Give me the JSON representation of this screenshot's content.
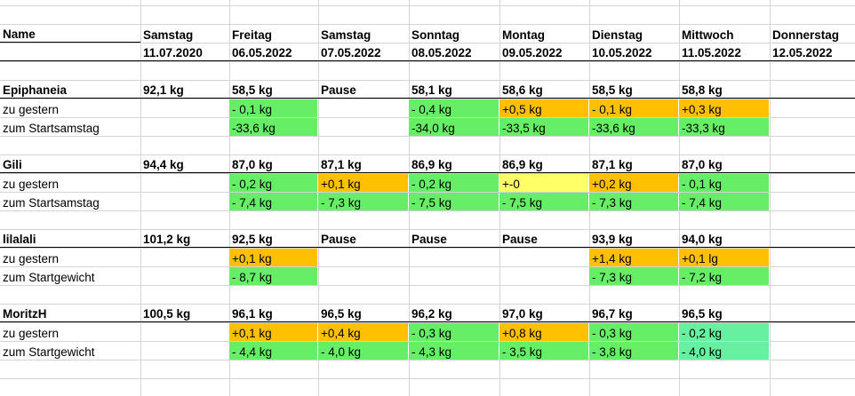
{
  "colors": {
    "green": "#66ee66",
    "orange": "#ffc000",
    "yellow": "#ffff66",
    "mint": "#66f0a0",
    "grid": "#d4d4d4"
  },
  "header": {
    "name": "Name",
    "days": [
      "Samstag",
      "Freitag",
      "Samstag",
      "Sonntag",
      "Montag",
      "Dienstag",
      "Mittwoch",
      "Donnerstag"
    ],
    "dates": [
      "11.07.2020",
      "06.05.2022",
      "07.05.2022",
      "08.05.2022",
      "09.05.2022",
      "10.05.2022",
      "11.05.2022",
      "12.05.2022"
    ]
  },
  "people": [
    {
      "name": "Epiphaneia",
      "weights": [
        "92,1 kg",
        "58,5 kg",
        "Pause",
        "58,1 kg",
        "58,6 kg",
        "58,5 kg",
        "58,8 kg",
        ""
      ],
      "row2_label": "zu gestern",
      "row2": [
        [
          "",
          ""
        ],
        [
          "- 0,1 kg",
          "green"
        ],
        [
          "",
          ""
        ],
        [
          "- 0,4 kg",
          "green"
        ],
        [
          "+0,5 kg",
          "orange"
        ],
        [
          "- 0,1 kg",
          "orange"
        ],
        [
          "+0,3 kg",
          "orange"
        ],
        [
          "",
          ""
        ]
      ],
      "row3_label": "zum Startsamstag",
      "row3": [
        [
          "",
          ""
        ],
        [
          "-33,6 kg",
          "green"
        ],
        [
          "",
          ""
        ],
        [
          "-34,0 kg",
          "green"
        ],
        [
          "-33,5 kg",
          "green"
        ],
        [
          "-33,6 kg",
          "green"
        ],
        [
          "-33,3 kg",
          "green"
        ],
        [
          "",
          ""
        ]
      ]
    },
    {
      "name": "Gili",
      "weights": [
        "94,4 kg",
        "87,0 kg",
        "87,1 kg",
        "86,9 kg",
        "86,9 kg",
        "87,1 kg",
        "87,0 kg",
        ""
      ],
      "row2_label": "zu gestern",
      "row2": [
        [
          "",
          ""
        ],
        [
          "- 0,2 kg",
          "green"
        ],
        [
          "+0,1 kg",
          "orange"
        ],
        [
          "- 0,2 kg",
          "green"
        ],
        [
          "+-0",
          "yellow"
        ],
        [
          "+0,2 kg",
          "orange"
        ],
        [
          "- 0,1 kg",
          "green"
        ],
        [
          "",
          ""
        ]
      ],
      "row3_label": "zum Startsamstag",
      "row3": [
        [
          "",
          ""
        ],
        [
          "- 7,4 kg",
          "green"
        ],
        [
          "- 7,3 kg",
          "green"
        ],
        [
          "- 7,5 kg",
          "green"
        ],
        [
          "- 7,5 kg",
          "green"
        ],
        [
          "- 7,3 kg",
          "green"
        ],
        [
          "- 7,4 kg",
          "green"
        ],
        [
          "",
          ""
        ]
      ]
    },
    {
      "name": "lilalali",
      "weights": [
        "101,2 kg",
        "92,5 kg",
        "Pause",
        "Pause",
        "Pause",
        "93,9 kg",
        "94,0 kg",
        ""
      ],
      "row2_label": "zu gestern",
      "row2": [
        [
          "",
          ""
        ],
        [
          "+0,1 kg",
          "orange"
        ],
        [
          "",
          ""
        ],
        [
          "",
          ""
        ],
        [
          "",
          ""
        ],
        [
          "+1,4 kg",
          "orange"
        ],
        [
          "+0,1 lg",
          "orange"
        ],
        [
          "",
          ""
        ]
      ],
      "row3_label": "zum Startgewicht",
      "row3": [
        [
          "",
          ""
        ],
        [
          "- 8,7 kg",
          "green"
        ],
        [
          "",
          ""
        ],
        [
          "",
          ""
        ],
        [
          "",
          ""
        ],
        [
          "- 7,3 kg",
          "green"
        ],
        [
          "- 7,2 kg",
          "green"
        ],
        [
          "",
          ""
        ]
      ]
    },
    {
      "name": "MoritzH",
      "weights": [
        "100,5 kg",
        "96,1 kg",
        "96,5 kg",
        "96,2 kg",
        "97,0 kg",
        "96,7 kg",
        "96,5 kg",
        ""
      ],
      "row2_label": "zu gestern",
      "row2": [
        [
          "",
          ""
        ],
        [
          "+0,1 kg",
          "orange"
        ],
        [
          "+0,4 kg",
          "orange"
        ],
        [
          " - 0,3 kg",
          "green"
        ],
        [
          "+0,8 kg",
          "orange"
        ],
        [
          "- 0,3 kg",
          "green"
        ],
        [
          "- 0,2 kg",
          "mint"
        ],
        [
          "",
          ""
        ]
      ],
      "row3_label": "zum Startgewicht",
      "row3": [
        [
          "",
          ""
        ],
        [
          "- 4,4 kg",
          "green"
        ],
        [
          "- 4,0 kg",
          "green"
        ],
        [
          " - 4,3 kg",
          "green"
        ],
        [
          "- 3,5 kg",
          "green"
        ],
        [
          "- 3,8 kg",
          "green"
        ],
        [
          "- 4,0 kg",
          "mint"
        ],
        [
          "",
          ""
        ]
      ]
    }
  ]
}
